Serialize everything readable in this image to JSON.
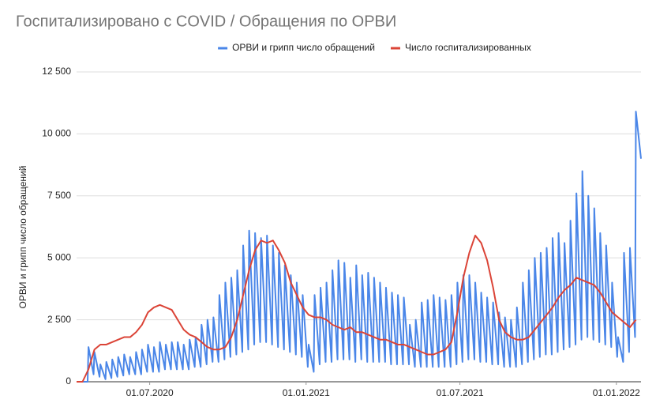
{
  "chart_data": {
    "type": "line",
    "title": "Госпитализировано с COVID / Обращения по ОРВИ",
    "y_label": "ОРВИ и грипп число обращений",
    "legend": "top",
    "grid": true,
    "xlim": [
      "06.04.2020",
      "30.01.2022"
    ],
    "xticks": [
      "01.07.2020",
      "01.01.2021",
      "01.07.2021",
      "01.01.2022"
    ],
    "ylim": [
      0,
      12500
    ],
    "yticks": [
      0,
      {
        "value": 2500,
        "label": "2 500"
      },
      {
        "value": 5000,
        "label": "5 000"
      },
      {
        "value": 7500,
        "label": "7 500"
      },
      {
        "value": 10000,
        "label": "10 000"
      },
      {
        "value": 12500,
        "label": "12 500"
      }
    ],
    "series": [
      {
        "name": "ОРВИ и грипп число обращений",
        "color": "#4a86e8",
        "x": [
          "06.04.2020",
          "12.04.2020",
          "13.04.2020",
          "19.04.2020",
          "20.04.2020",
          "26.04.2020",
          "27.04.2020",
          "03.05.2020",
          "04.05.2020",
          "10.05.2020",
          "11.05.2020",
          "17.05.2020",
          "18.05.2020",
          "24.05.2020",
          "25.05.2020",
          "31.05.2020",
          "01.06.2020",
          "07.06.2020",
          "08.06.2020",
          "14.06.2020",
          "15.06.2020",
          "21.06.2020",
          "22.06.2020",
          "28.06.2020",
          "29.06.2020",
          "05.07.2020",
          "06.07.2020",
          "12.07.2020",
          "13.07.2020",
          "19.07.2020",
          "20.07.2020",
          "26.07.2020",
          "27.07.2020",
          "02.08.2020",
          "03.08.2020",
          "09.08.2020",
          "10.08.2020",
          "16.08.2020",
          "17.08.2020",
          "23.08.2020",
          "24.08.2020",
          "30.08.2020",
          "31.08.2020",
          "06.09.2020",
          "07.09.2020",
          "13.09.2020",
          "14.09.2020",
          "20.09.2020",
          "21.09.2020",
          "27.09.2020",
          "28.09.2020",
          "04.10.2020",
          "05.10.2020",
          "11.10.2020",
          "12.10.2020",
          "18.10.2020",
          "19.10.2020",
          "25.10.2020",
          "26.10.2020",
          "01.11.2020",
          "02.11.2020",
          "08.11.2020",
          "09.11.2020",
          "15.11.2020",
          "16.11.2020",
          "22.11.2020",
          "23.11.2020",
          "29.11.2020",
          "30.11.2020",
          "06.12.2020",
          "07.12.2020",
          "13.12.2020",
          "14.12.2020",
          "20.12.2020",
          "21.12.2020",
          "27.12.2020",
          "28.12.2020",
          "03.01.2021",
          "04.01.2021",
          "10.01.2021",
          "11.01.2021",
          "17.01.2021",
          "18.01.2021",
          "24.01.2021",
          "25.01.2021",
          "31.01.2021",
          "01.02.2021",
          "07.02.2021",
          "08.02.2021",
          "14.02.2021",
          "15.02.2021",
          "21.02.2021",
          "22.02.2021",
          "28.02.2021",
          "01.03.2021",
          "07.03.2021",
          "08.03.2021",
          "14.03.2021",
          "15.03.2021",
          "21.03.2021",
          "22.03.2021",
          "28.03.2021",
          "29.03.2021",
          "04.04.2021",
          "05.04.2021",
          "11.04.2021",
          "12.04.2021",
          "18.04.2021",
          "19.04.2021",
          "25.04.2021",
          "26.04.2021",
          "02.05.2021",
          "03.05.2021",
          "09.05.2021",
          "10.05.2021",
          "16.05.2021",
          "17.05.2021",
          "23.05.2021",
          "24.05.2021",
          "30.05.2021",
          "31.05.2021",
          "06.06.2021",
          "07.06.2021",
          "13.06.2021",
          "14.06.2021",
          "20.06.2021",
          "21.06.2021",
          "27.06.2021",
          "28.06.2021",
          "04.07.2021",
          "05.07.2021",
          "11.07.2021",
          "12.07.2021",
          "18.07.2021",
          "19.07.2021",
          "25.07.2021",
          "26.07.2021",
          "01.08.2021",
          "02.08.2021",
          "08.08.2021",
          "09.08.2021",
          "15.08.2021",
          "16.08.2021",
          "22.08.2021",
          "23.08.2021",
          "29.08.2021",
          "30.08.2021",
          "05.09.2021",
          "06.09.2021",
          "12.09.2021",
          "13.09.2021",
          "19.09.2021",
          "20.09.2021",
          "26.09.2021",
          "27.09.2021",
          "03.10.2021",
          "04.10.2021",
          "10.10.2021",
          "11.10.2021",
          "17.10.2021",
          "18.10.2021",
          "24.10.2021",
          "25.10.2021",
          "31.10.2021",
          "01.11.2021",
          "07.11.2021",
          "08.11.2021",
          "14.11.2021",
          "15.11.2021",
          "21.11.2021",
          "22.11.2021",
          "28.11.2021",
          "29.11.2021",
          "05.12.2021",
          "06.12.2021",
          "12.12.2021",
          "13.12.2021",
          "19.12.2021",
          "20.12.2021",
          "26.12.2021",
          "27.12.2021",
          "02.01.2022",
          "03.01.2022",
          "09.01.2022",
          "10.01.2022",
          "16.01.2022",
          "17.01.2022",
          "23.01.2022",
          "24.01.2022",
          "30.01.2022"
        ],
        "values": [
          0,
          0,
          0,
          0,
          1400,
          300,
          1200,
          200,
          700,
          100,
          800,
          150,
          900,
          200,
          1000,
          250,
          1100,
          300,
          1000,
          300,
          1200,
          300,
          1300,
          400,
          1500,
          400,
          1400,
          400,
          1600,
          500,
          1500,
          500,
          1600,
          500,
          1600,
          500,
          1500,
          500,
          1700,
          600,
          1800,
          600,
          2300,
          700,
          2500,
          800,
          2600,
          800,
          3500,
          900,
          4000,
          1000,
          4200,
          1100,
          4500,
          1200,
          5500,
          1300,
          6100,
          1500,
          6000,
          1600,
          5800,
          1600,
          5900,
          1500,
          5500,
          1400,
          5200,
          1300,
          4700,
          1200,
          4300,
          1100,
          4000,
          1000,
          3500,
          600,
          1500,
          400,
          3500,
          700,
          3800,
          800,
          4000,
          800,
          4500,
          900,
          4900,
          900,
          4800,
          900,
          4200,
          800,
          4700,
          900,
          4300,
          800,
          4400,
          800,
          4200,
          800,
          4000,
          800,
          3800,
          700,
          3600,
          700,
          3500,
          700,
          3400,
          700,
          2300,
          600,
          2500,
          600,
          3200,
          600,
          3300,
          600,
          3500,
          600,
          3400,
          600,
          3300,
          600,
          3500,
          700,
          4000,
          800,
          4300,
          900,
          4300,
          900,
          4000,
          800,
          3600,
          800,
          3400,
          700,
          3200,
          700,
          2800,
          600,
          2600,
          600,
          2500,
          600,
          3000,
          700,
          4000,
          800,
          4500,
          900,
          5000,
          1000,
          5200,
          1100,
          5400,
          1100,
          5800,
          1200,
          6000,
          1300,
          5600,
          1400,
          6500,
          1500,
          7600,
          1700,
          8500,
          1800,
          7500,
          1700,
          7000,
          1600,
          6000,
          1500,
          5500,
          1400,
          4000,
          1000,
          1800,
          800,
          5200,
          1200,
          5400,
          1800,
          10900,
          9000
        ]
      },
      {
        "name": "Число госпитализированных",
        "color": "#db4437",
        "x": [
          "06.04.2020",
          "13.04.2020",
          "20.04.2020",
          "27.04.2020",
          "04.05.2020",
          "11.05.2020",
          "18.05.2020",
          "25.05.2020",
          "01.06.2020",
          "08.06.2020",
          "15.06.2020",
          "22.06.2020",
          "29.06.2020",
          "06.07.2020",
          "13.07.2020",
          "20.07.2020",
          "27.07.2020",
          "03.08.2020",
          "10.08.2020",
          "17.08.2020",
          "24.08.2020",
          "31.08.2020",
          "07.09.2020",
          "14.09.2020",
          "21.09.2020",
          "28.09.2020",
          "05.10.2020",
          "12.10.2020",
          "19.10.2020",
          "26.10.2020",
          "02.11.2020",
          "09.11.2020",
          "16.11.2020",
          "23.11.2020",
          "30.11.2020",
          "07.12.2020",
          "14.12.2020",
          "21.12.2020",
          "28.12.2020",
          "04.01.2021",
          "11.01.2021",
          "18.01.2021",
          "25.01.2021",
          "01.02.2021",
          "08.02.2021",
          "15.02.2021",
          "22.02.2021",
          "01.03.2021",
          "08.03.2021",
          "15.03.2021",
          "22.03.2021",
          "29.03.2021",
          "05.04.2021",
          "12.04.2021",
          "19.04.2021",
          "26.04.2021",
          "03.05.2021",
          "10.05.2021",
          "17.05.2021",
          "24.05.2021",
          "31.05.2021",
          "07.06.2021",
          "14.06.2021",
          "21.06.2021",
          "28.06.2021",
          "05.07.2021",
          "12.07.2021",
          "19.07.2021",
          "26.07.2021",
          "02.08.2021",
          "09.08.2021",
          "16.08.2021",
          "23.08.2021",
          "30.08.2021",
          "06.09.2021",
          "13.09.2021",
          "20.09.2021",
          "27.09.2021",
          "04.10.2021",
          "11.10.2021",
          "18.10.2021",
          "25.10.2021",
          "01.11.2021",
          "08.11.2021",
          "15.11.2021",
          "22.11.2021",
          "29.11.2021",
          "06.12.2021",
          "13.12.2021",
          "20.12.2021",
          "27.12.2021",
          "03.01.2022",
          "10.01.2022",
          "17.01.2022",
          "24.01.2022"
        ],
        "values": [
          0,
          0,
          500,
          1300,
          1500,
          1500,
          1600,
          1700,
          1800,
          1800,
          2000,
          2300,
          2800,
          3000,
          3100,
          3000,
          2900,
          2500,
          2100,
          1900,
          1800,
          1600,
          1400,
          1300,
          1300,
          1400,
          1800,
          2500,
          3500,
          4500,
          5300,
          5700,
          5600,
          5700,
          5300,
          4800,
          4000,
          3500,
          3000,
          2700,
          2600,
          2600,
          2500,
          2300,
          2200,
          2100,
          2200,
          2000,
          2000,
          1900,
          1800,
          1700,
          1700,
          1600,
          1500,
          1500,
          1400,
          1300,
          1200,
          1100,
          1100,
          1200,
          1300,
          1600,
          2800,
          4200,
          5200,
          5900,
          5600,
          4900,
          3800,
          2500,
          2000,
          1800,
          1700,
          1700,
          1800,
          2100,
          2400,
          2700,
          3000,
          3400,
          3700,
          3900,
          4200,
          4100,
          4000,
          3900,
          3600,
          3200,
          2800,
          2600,
          2400,
          2200,
          2500
        ]
      }
    ]
  }
}
